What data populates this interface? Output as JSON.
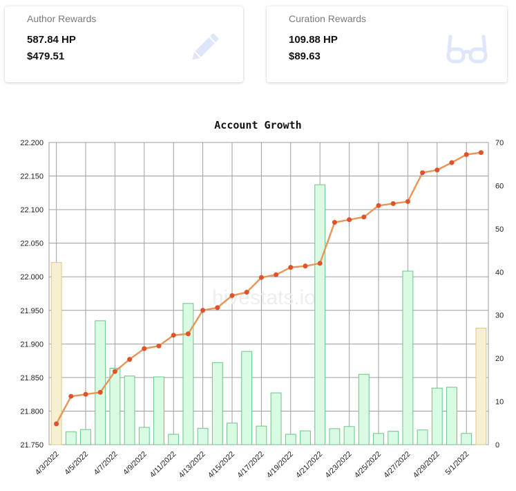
{
  "cards": {
    "author": {
      "title": "Author Rewards",
      "hp": "587.84 HP",
      "usd": "$479.51",
      "icon": "pencil-icon"
    },
    "curation": {
      "title": "Curation Rewards",
      "hp": "109.88 HP",
      "usd": "$89.63",
      "icon": "glasses-icon"
    }
  },
  "colors": {
    "line": "#e8975a",
    "point": "#e0522a",
    "bar_fill": "#d9fbe3",
    "bar_stroke": "#6cc486",
    "bar_highlight_fill": "#f5f0cf",
    "bar_highlight_stroke": "#d9c98a",
    "grid": "#9e9e9e"
  },
  "chart_data": {
    "type": "line+bar",
    "title": "Account Growth",
    "xlabel": "",
    "ylabel": "",
    "x_tick_labels": [
      "4/3/2022",
      "4/5/2022",
      "4/7/2022",
      "4/9/2022",
      "4/11/2022",
      "4/13/2022",
      "4/15/2022",
      "4/17/2022",
      "4/19/2022",
      "4/21/2022",
      "4/23/2022",
      "4/25/2022",
      "4/27/2022",
      "4/29/2022",
      "5/1/2022"
    ],
    "y_left_ticks": [
      "21.750",
      "21.800",
      "21.850",
      "21.900",
      "21.950",
      "22.000",
      "22.050",
      "22.100",
      "22.150",
      "22.200"
    ],
    "y_left_lim": [
      21.75,
      22.2
    ],
    "y_right_ticks": [
      "0",
      "10",
      "20",
      "30",
      "40",
      "50",
      "60",
      "70"
    ],
    "y_right_lim": [
      0,
      70
    ],
    "grid": true,
    "watermark": "hivestats.io",
    "categories": [
      "4/3/2022",
      "4/4/2022",
      "4/5/2022",
      "4/6/2022",
      "4/7/2022",
      "4/8/2022",
      "4/9/2022",
      "4/10/2022",
      "4/11/2022",
      "4/12/2022",
      "4/13/2022",
      "4/14/2022",
      "4/15/2022",
      "4/16/2022",
      "4/17/2022",
      "4/18/2022",
      "4/19/2022",
      "4/20/2022",
      "4/21/2022",
      "4/22/2022",
      "4/23/2022",
      "4/24/2022",
      "4/25/2022",
      "4/26/2022",
      "4/27/2022",
      "4/28/2022",
      "4/29/2022",
      "4/30/2022",
      "5/1/2022",
      "5/2/2022"
    ],
    "series": [
      {
        "type": "line",
        "axis": "left",
        "values": [
          21.781,
          21.822,
          21.825,
          21.828,
          21.859,
          21.877,
          21.893,
          21.897,
          21.913,
          21.915,
          21.95,
          21.954,
          21.972,
          21.977,
          21.999,
          22.003,
          22.014,
          22.016,
          22.02,
          22.081,
          22.085,
          22.089,
          22.106,
          22.109,
          22.112,
          22.155,
          22.159,
          22.17,
          22.182,
          22.185
        ]
      },
      {
        "type": "bar",
        "axis": "right",
        "values": [
          42.2,
          3.0,
          3.5,
          28.7,
          17.7,
          15.9,
          4.0,
          15.7,
          2.4,
          32.7,
          3.8,
          19.0,
          5.0,
          21.6,
          4.3,
          12.0,
          2.4,
          3.2,
          60.2,
          3.7,
          4.2,
          16.3,
          2.6,
          3.1,
          40.2,
          3.4,
          13.1,
          13.3,
          2.6,
          27.0
        ],
        "highlight_indices": [
          0,
          29
        ]
      }
    ]
  }
}
